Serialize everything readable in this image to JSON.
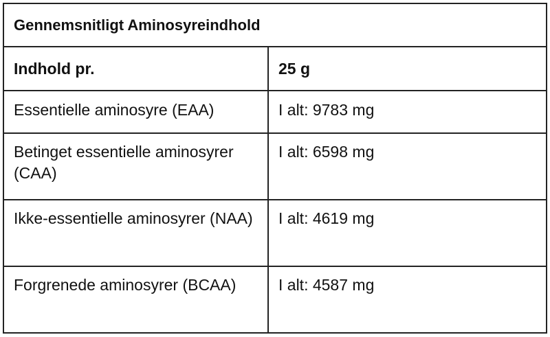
{
  "title": "Gennemsnitligt Aminosyreindhold",
  "header": {
    "col1": "Indhold pr.",
    "col2": "25 g"
  },
  "rows": [
    {
      "name": "Essentielle aminosyre (EAA)",
      "value": "I alt: 9783 mg"
    },
    {
      "name": "Betinget essentielle aminosyrer (CAA)",
      "value": "I alt: 6598 mg"
    },
    {
      "name": "Ikke-essentielle aminosyrer (NAA)",
      "value": "I alt: 4619 mg"
    },
    {
      "name": "Forgrenede aminosyrer (BCAA)",
      "value": "I alt: 4587 mg"
    }
  ]
}
